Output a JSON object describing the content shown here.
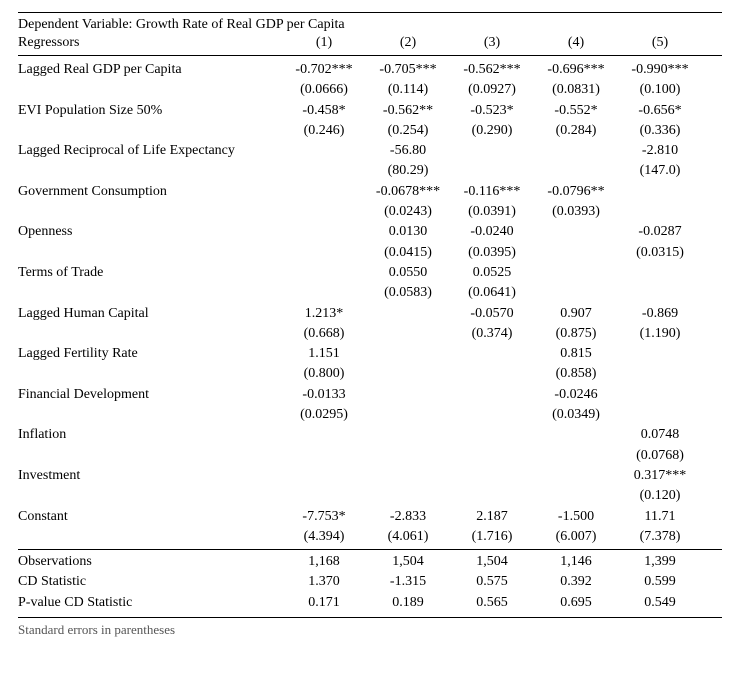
{
  "title": "Dependent Variable: Growth Rate of Real GDP per Capita",
  "header": {
    "label": "Regressors",
    "cols": [
      "(1)",
      "(2)",
      "(3)",
      "(4)",
      "(5)"
    ]
  },
  "body": [
    {
      "label": "Lagged Real GDP per Capita",
      "est": [
        "-0.702***",
        "-0.705***",
        "-0.562***",
        "-0.696***",
        "-0.990***"
      ],
      "se": [
        "(0.0666)",
        "(0.114)",
        "(0.0927)",
        "(0.0831)",
        "(0.100)"
      ]
    },
    {
      "label": "EVI Population Size 50%",
      "est": [
        "-0.458*",
        "-0.562**",
        "-0.523*",
        "-0.552*",
        "-0.656*"
      ],
      "se": [
        "(0.246)",
        "(0.254)",
        "(0.290)",
        "(0.284)",
        "(0.336)"
      ]
    },
    {
      "label": "Lagged Reciprocal of Life Expectancy",
      "est": [
        "",
        "-56.80",
        "",
        "",
        "-2.810"
      ],
      "se": [
        "",
        "(80.29)",
        "",
        "",
        "(147.0)"
      ]
    },
    {
      "label": "Government Consumption",
      "est": [
        "",
        "-0.0678***",
        "-0.116***",
        "-0.0796**",
        ""
      ],
      "se": [
        "",
        "(0.0243)",
        "(0.0391)",
        "(0.0393)",
        ""
      ]
    },
    {
      "label": "Openness",
      "est": [
        "",
        "0.0130",
        "-0.0240",
        "",
        "-0.0287"
      ],
      "se": [
        "",
        "(0.0415)",
        "(0.0395)",
        "",
        "(0.0315)"
      ]
    },
    {
      "label": "Terms of Trade",
      "est": [
        "",
        "0.0550",
        "0.0525",
        "",
        ""
      ],
      "se": [
        "",
        "(0.0583)",
        "(0.0641)",
        "",
        ""
      ]
    },
    {
      "label": "Lagged Human Capital",
      "est": [
        "1.213*",
        "",
        "-0.0570",
        "0.907",
        "-0.869"
      ],
      "se": [
        "(0.668)",
        "",
        "(0.374)",
        "(0.875)",
        "(1.190)"
      ]
    },
    {
      "label": "Lagged Fertility Rate",
      "est": [
        "1.151",
        "",
        "",
        "0.815",
        ""
      ],
      "se": [
        "(0.800)",
        "",
        "",
        "(0.858)",
        ""
      ]
    },
    {
      "label": "Financial Development",
      "est": [
        "-0.0133",
        "",
        "",
        "-0.0246",
        ""
      ],
      "se": [
        "(0.0295)",
        "",
        "",
        "(0.0349)",
        ""
      ]
    },
    {
      "label": "Inflation",
      "est": [
        "",
        "",
        "",
        "",
        "0.0748"
      ],
      "se": [
        "",
        "",
        "",
        "",
        "(0.0768)"
      ]
    },
    {
      "label": "Investment",
      "est": [
        "",
        "",
        "",
        "",
        "0.317***"
      ],
      "se": [
        "",
        "",
        "",
        "",
        "(0.120)"
      ]
    },
    {
      "label": "Constant",
      "est": [
        "-7.753*",
        "-2.833",
        "2.187",
        "-1.500",
        "11.71"
      ],
      "se": [
        "(4.394)",
        "(4.061)",
        "(1.716)",
        "(6.007)",
        "(7.378)"
      ]
    }
  ],
  "footer": [
    {
      "label": "Observations",
      "vals": [
        "1,168",
        "1,504",
        "1,504",
        "1,146",
        "1,399"
      ]
    },
    {
      "label": "CD Statistic",
      "vals": [
        "1.370",
        "-1.315",
        "0.575",
        "0.392",
        "0.599"
      ]
    },
    {
      "label": "P-value CD Statistic",
      "vals": [
        "0.171",
        "0.189",
        "0.565",
        "0.695",
        "0.549"
      ]
    }
  ],
  "note": "Standard errors in parentheses"
}
